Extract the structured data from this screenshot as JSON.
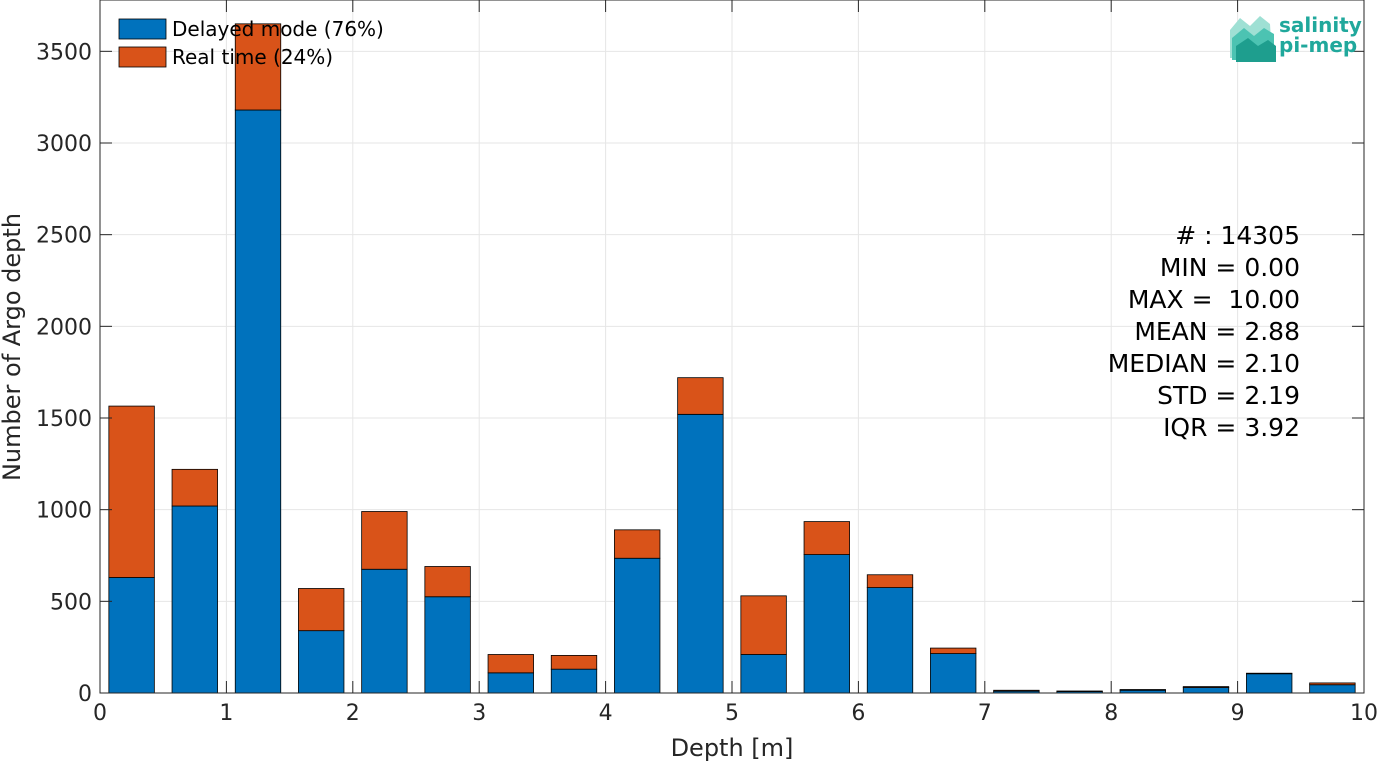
{
  "chart_data": {
    "type": "bar",
    "stacked": true,
    "x": [
      0.25,
      0.75,
      1.25,
      1.75,
      2.25,
      2.75,
      3.25,
      3.75,
      4.25,
      4.75,
      5.25,
      5.75,
      6.25,
      6.75,
      7.25,
      7.75,
      8.25,
      8.75,
      9.25,
      9.75
    ],
    "series": [
      {
        "name": "Delayed mode (76%)",
        "color": "#0072BD",
        "values": [
          630,
          1020,
          3180,
          340,
          675,
          525,
          110,
          130,
          735,
          1520,
          210,
          755,
          575,
          215,
          10,
          8,
          15,
          30,
          105,
          45
        ]
      },
      {
        "name": "Real time (24%)",
        "color": "#D95319",
        "values": [
          935,
          200,
          470,
          230,
          315,
          165,
          100,
          75,
          155,
          200,
          320,
          180,
          70,
          30,
          5,
          3,
          4,
          5,
          3,
          10
        ]
      }
    ],
    "xlabel": "Depth [m]",
    "ylabel": "Number of Argo depth",
    "xlim": [
      0,
      10
    ],
    "ylim": [
      0,
      3780
    ],
    "xticks": [
      "0",
      "1",
      "2",
      "3",
      "4",
      "5",
      "6",
      "7",
      "8",
      "9",
      "10"
    ],
    "yticks": [
      "0",
      "500",
      "1000",
      "1500",
      "2000",
      "2500",
      "3000",
      "3500"
    ],
    "grid": true,
    "legend_position": "top-left"
  },
  "stats": [
    "# : 14305",
    "MIN = 0.00",
    "MAX =  10.00",
    "MEAN = 2.88",
    "MEDIAN = 2.10",
    "STD = 2.19",
    "IQR = 3.92"
  ],
  "logo": {
    "line1": "salinity",
    "line2": "pi-mep"
  }
}
